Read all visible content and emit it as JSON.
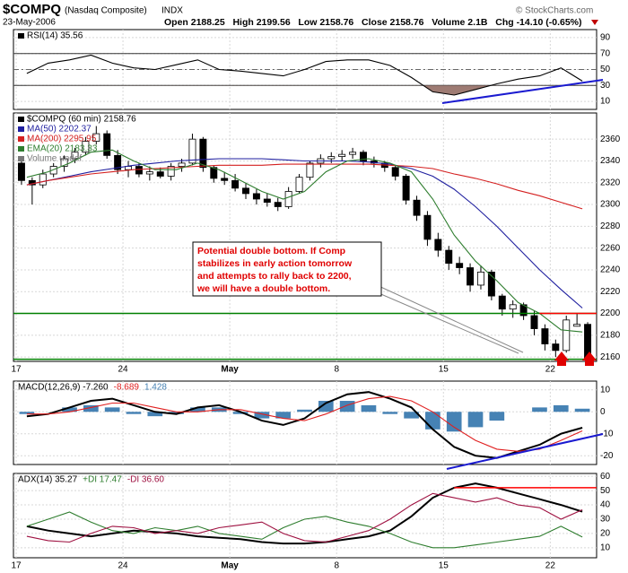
{
  "header": {
    "symbol": "$COMPQ",
    "name": "(Nasdaq Composite)",
    "exchange": "INDX",
    "credit": "© StockCharts.com",
    "date": "23-May-2006",
    "stats": "Open 2188.25   High 2199.56   Low 2158.76   Close 2158.76   Volume 2.1B   Chg -14.10 (-0.65%)"
  },
  "chart_data": [
    {
      "type": "line",
      "ylim": [
        0,
        100
      ],
      "yticks": [
        10,
        30,
        50,
        70,
        90
      ],
      "grid": true,
      "xlim": [
        0,
        27
      ],
      "xticks": [
        {
          "value": 0,
          "label": "17"
        },
        {
          "value": 5,
          "label": "24"
        },
        {
          "value": 10,
          "label": "May"
        },
        {
          "value": 15,
          "label": "8"
        },
        {
          "value": 20,
          "label": "15"
        },
        {
          "value": 25,
          "label": "22"
        }
      ],
      "levels": [
        30,
        50,
        70
      ],
      "fill_below": 30,
      "fill_color": "#9e7b73",
      "series": [
        {
          "name": "RSI(14) 35.56",
          "color": "#000000",
          "values": [
            45,
            58,
            62,
            68,
            58,
            52,
            50,
            56,
            62,
            50,
            48,
            45,
            42,
            50,
            60,
            62,
            62,
            55,
            40,
            22,
            18,
            25,
            32,
            38,
            42,
            52,
            35.56
          ]
        }
      ]
    },
    {
      "type": "candlestick",
      "ylim": [
        2156,
        2384
      ],
      "yticks": [
        2160,
        2180,
        2200,
        2220,
        2240,
        2260,
        2280,
        2300,
        2320,
        2340,
        2360
      ],
      "grid": true,
      "xlim": [
        0,
        27
      ],
      "xticks": [
        {
          "value": 0,
          "label": "17"
        },
        {
          "value": 5,
          "label": "24"
        },
        {
          "value": 10,
          "label": "May"
        },
        {
          "value": 15,
          "label": "8"
        },
        {
          "value": 20,
          "label": "15"
        },
        {
          "value": 25,
          "label": "22"
        }
      ],
      "show_xlabels": true,
      "candles": {
        "name": "$COMPQ (60 min) 2158.76",
        "color": "#000000",
        "open": [
          2338,
          2322,
          2318,
          2328,
          2335,
          2342,
          2348,
          2358,
          2365,
          2345,
          2332,
          2335,
          2328,
          2330,
          2326,
          2335,
          2338,
          2360,
          2334,
          2324,
          2322,
          2315,
          2310,
          2305,
          2302,
          2298,
          2312,
          2325,
          2338,
          2342,
          2344,
          2346,
          2348,
          2340,
          2338,
          2334,
          2326,
          2304,
          2290,
          2268,
          2258,
          2246,
          2242,
          2226,
          2238,
          2216,
          2204,
          2208,
          2198,
          2186,
          2172,
          2166,
          2188.25,
          2190
        ],
        "high": [
          2342,
          2325,
          2332,
          2338,
          2345,
          2352,
          2362,
          2372,
          2368,
          2350,
          2340,
          2338,
          2335,
          2334,
          2338,
          2342,
          2365,
          2362,
          2336,
          2330,
          2328,
          2320,
          2314,
          2310,
          2306,
          2316,
          2328,
          2340,
          2346,
          2348,
          2350,
          2352,
          2350,
          2344,
          2340,
          2336,
          2328,
          2308,
          2294,
          2274,
          2262,
          2252,
          2246,
          2244,
          2240,
          2218,
          2212,
          2210,
          2202,
          2190,
          2176,
          2198,
          2199.56,
          2192
        ],
        "low": [
          2318,
          2300,
          2315,
          2325,
          2330,
          2338,
          2345,
          2355,
          2342,
          2328,
          2325,
          2325,
          2322,
          2324,
          2322,
          2330,
          2336,
          2330,
          2320,
          2318,
          2312,
          2305,
          2300,
          2298,
          2294,
          2296,
          2310,
          2322,
          2334,
          2338,
          2340,
          2342,
          2336,
          2334,
          2330,
          2322,
          2300,
          2285,
          2262,
          2252,
          2240,
          2236,
          2220,
          2222,
          2212,
          2198,
          2196,
          2194,
          2180,
          2166,
          2160,
          2164,
          2188,
          2158.76
        ],
        "close": [
          2322,
          2318,
          2328,
          2335,
          2342,
          2348,
          2358,
          2365,
          2345,
          2332,
          2335,
          2328,
          2330,
          2326,
          2335,
          2338,
          2360,
          2334,
          2324,
          2322,
          2315,
          2310,
          2305,
          2302,
          2298,
          2312,
          2325,
          2338,
          2342,
          2344,
          2346,
          2348,
          2340,
          2338,
          2334,
          2326,
          2304,
          2290,
          2268,
          2258,
          2246,
          2242,
          2226,
          2238,
          2216,
          2204,
          2208,
          2198,
          2186,
          2172,
          2166,
          2194,
          2190,
          2158.76
        ]
      },
      "series": [
        {
          "name": "MA(50) 2202.37",
          "color": "#1f1f9f",
          "values": [
            2318,
            2322,
            2326,
            2330,
            2333,
            2336,
            2338,
            2340,
            2341,
            2342,
            2342,
            2342,
            2341,
            2340,
            2340,
            2340,
            2339,
            2337,
            2333,
            2326,
            2314,
            2298,
            2280,
            2260,
            2240,
            2222,
            2205
          ]
        },
        {
          "name": "MA(200) 2295.95",
          "color": "#d42020",
          "values": [
            2318,
            2322,
            2325,
            2328,
            2330,
            2332,
            2333,
            2334,
            2335,
            2336,
            2336,
            2336,
            2337,
            2337,
            2337,
            2337,
            2337,
            2336,
            2335,
            2333,
            2328,
            2324,
            2319,
            2313,
            2308,
            2302,
            2296
          ]
        },
        {
          "name": "EMA(20) 2183.33",
          "color": "#2e7d2e",
          "values": [
            2325,
            2330,
            2338,
            2348,
            2350,
            2340,
            2332,
            2332,
            2338,
            2332,
            2322,
            2312,
            2305,
            2312,
            2330,
            2340,
            2342,
            2338,
            2330,
            2305,
            2272,
            2248,
            2230,
            2210,
            2200,
            2185,
            2183
          ]
        }
      ],
      "legend_extra": "Volume undef",
      "reference_lines": [
        {
          "value": 2200,
          "color": "#008000"
        },
        {
          "value": 2158,
          "color": "#008000"
        },
        {
          "value": 2200,
          "color": "#ff0000",
          "from": 24.5
        }
      ],
      "annotation": [
        "Potential double bottom.  If Comp",
        "stabilizes in early action tomorrow",
        "and attempts to rally back to 2200,",
        "we will have a double bottom."
      ]
    },
    {
      "type": "line",
      "ylim": [
        -24,
        14
      ],
      "yticks": [
        -20,
        -10,
        0,
        10
      ],
      "grid": true,
      "xlim": [
        0,
        27
      ],
      "xticks": [
        {
          "value": 0,
          "label": "17"
        },
        {
          "value": 5,
          "label": "24"
        },
        {
          "value": 10,
          "label": "May"
        },
        {
          "value": 15,
          "label": "8"
        },
        {
          "value": 20,
          "label": "15"
        },
        {
          "value": 25,
          "label": "22"
        }
      ],
      "series": [
        {
          "name": "1.428",
          "color": "#4682b4",
          "style": "bar",
          "values": [
            -1,
            0,
            2,
            3,
            2,
            -1,
            -2,
            -1,
            2,
            2,
            -1,
            -3,
            -3,
            1,
            5,
            5,
            3,
            -1,
            -3,
            -8,
            -9,
            -7,
            -4,
            0,
            2,
            3,
            1.428
          ]
        },
        {
          "name": "MACD(12,26,9) -7.260",
          "color": "#000000",
          "values": [
            -2,
            -1,
            2,
            5,
            6,
            3,
            0,
            -1,
            2,
            3,
            0,
            -4,
            -6,
            -3,
            4,
            8,
            9,
            6,
            2,
            -8,
            -16,
            -20,
            -21,
            -18,
            -15,
            -10,
            -7.26
          ]
        },
        {
          "name": "-8.689",
          "color": "#e02020",
          "values": [
            -1,
            -1,
            0,
            2,
            4,
            4,
            2,
            0,
            0,
            1,
            1,
            -1,
            -3,
            -4,
            -1,
            3,
            6,
            7,
            5,
            0,
            -7,
            -13,
            -17,
            -18,
            -17,
            -13,
            -8.689
          ]
        }
      ]
    },
    {
      "type": "line",
      "ylim": [
        3,
        62
      ],
      "yticks": [
        10,
        20,
        30,
        40,
        50,
        60
      ],
      "grid": true,
      "xlim": [
        0,
        27
      ],
      "xticks": [
        {
          "value": 0,
          "label": "17"
        },
        {
          "value": 5,
          "label": "24"
        },
        {
          "value": 10,
          "label": "May"
        },
        {
          "value": 15,
          "label": "8"
        },
        {
          "value": 20,
          "label": "15"
        },
        {
          "value": 25,
          "label": "22"
        }
      ],
      "show_xlabels": true,
      "reference_lines": [
        {
          "value": 52,
          "color": "#ff0000",
          "from": 20.5
        }
      ],
      "series": [
        {
          "name": "ADX(14) 35.27",
          "color": "#000000",
          "values": [
            25,
            22,
            20,
            18,
            20,
            22,
            21,
            20,
            18,
            17,
            16,
            14,
            13,
            13,
            14,
            16,
            18,
            22,
            32,
            45,
            52,
            55,
            52,
            48,
            44,
            40,
            35.27
          ]
        },
        {
          "name": "+DI 17.47",
          "color": "#2e7d2e",
          "values": [
            25,
            30,
            35,
            28,
            22,
            20,
            24,
            22,
            25,
            20,
            18,
            16,
            24,
            30,
            32,
            28,
            25,
            20,
            14,
            10,
            10,
            12,
            14,
            16,
            18,
            25,
            17.47
          ]
        },
        {
          "name": "-DI 36.60",
          "color": "#9e1040",
          "values": [
            18,
            15,
            14,
            20,
            25,
            24,
            20,
            22,
            20,
            24,
            26,
            28,
            20,
            15,
            14,
            18,
            22,
            30,
            40,
            48,
            45,
            42,
            45,
            40,
            38,
            30,
            36.6
          ]
        }
      ]
    }
  ]
}
